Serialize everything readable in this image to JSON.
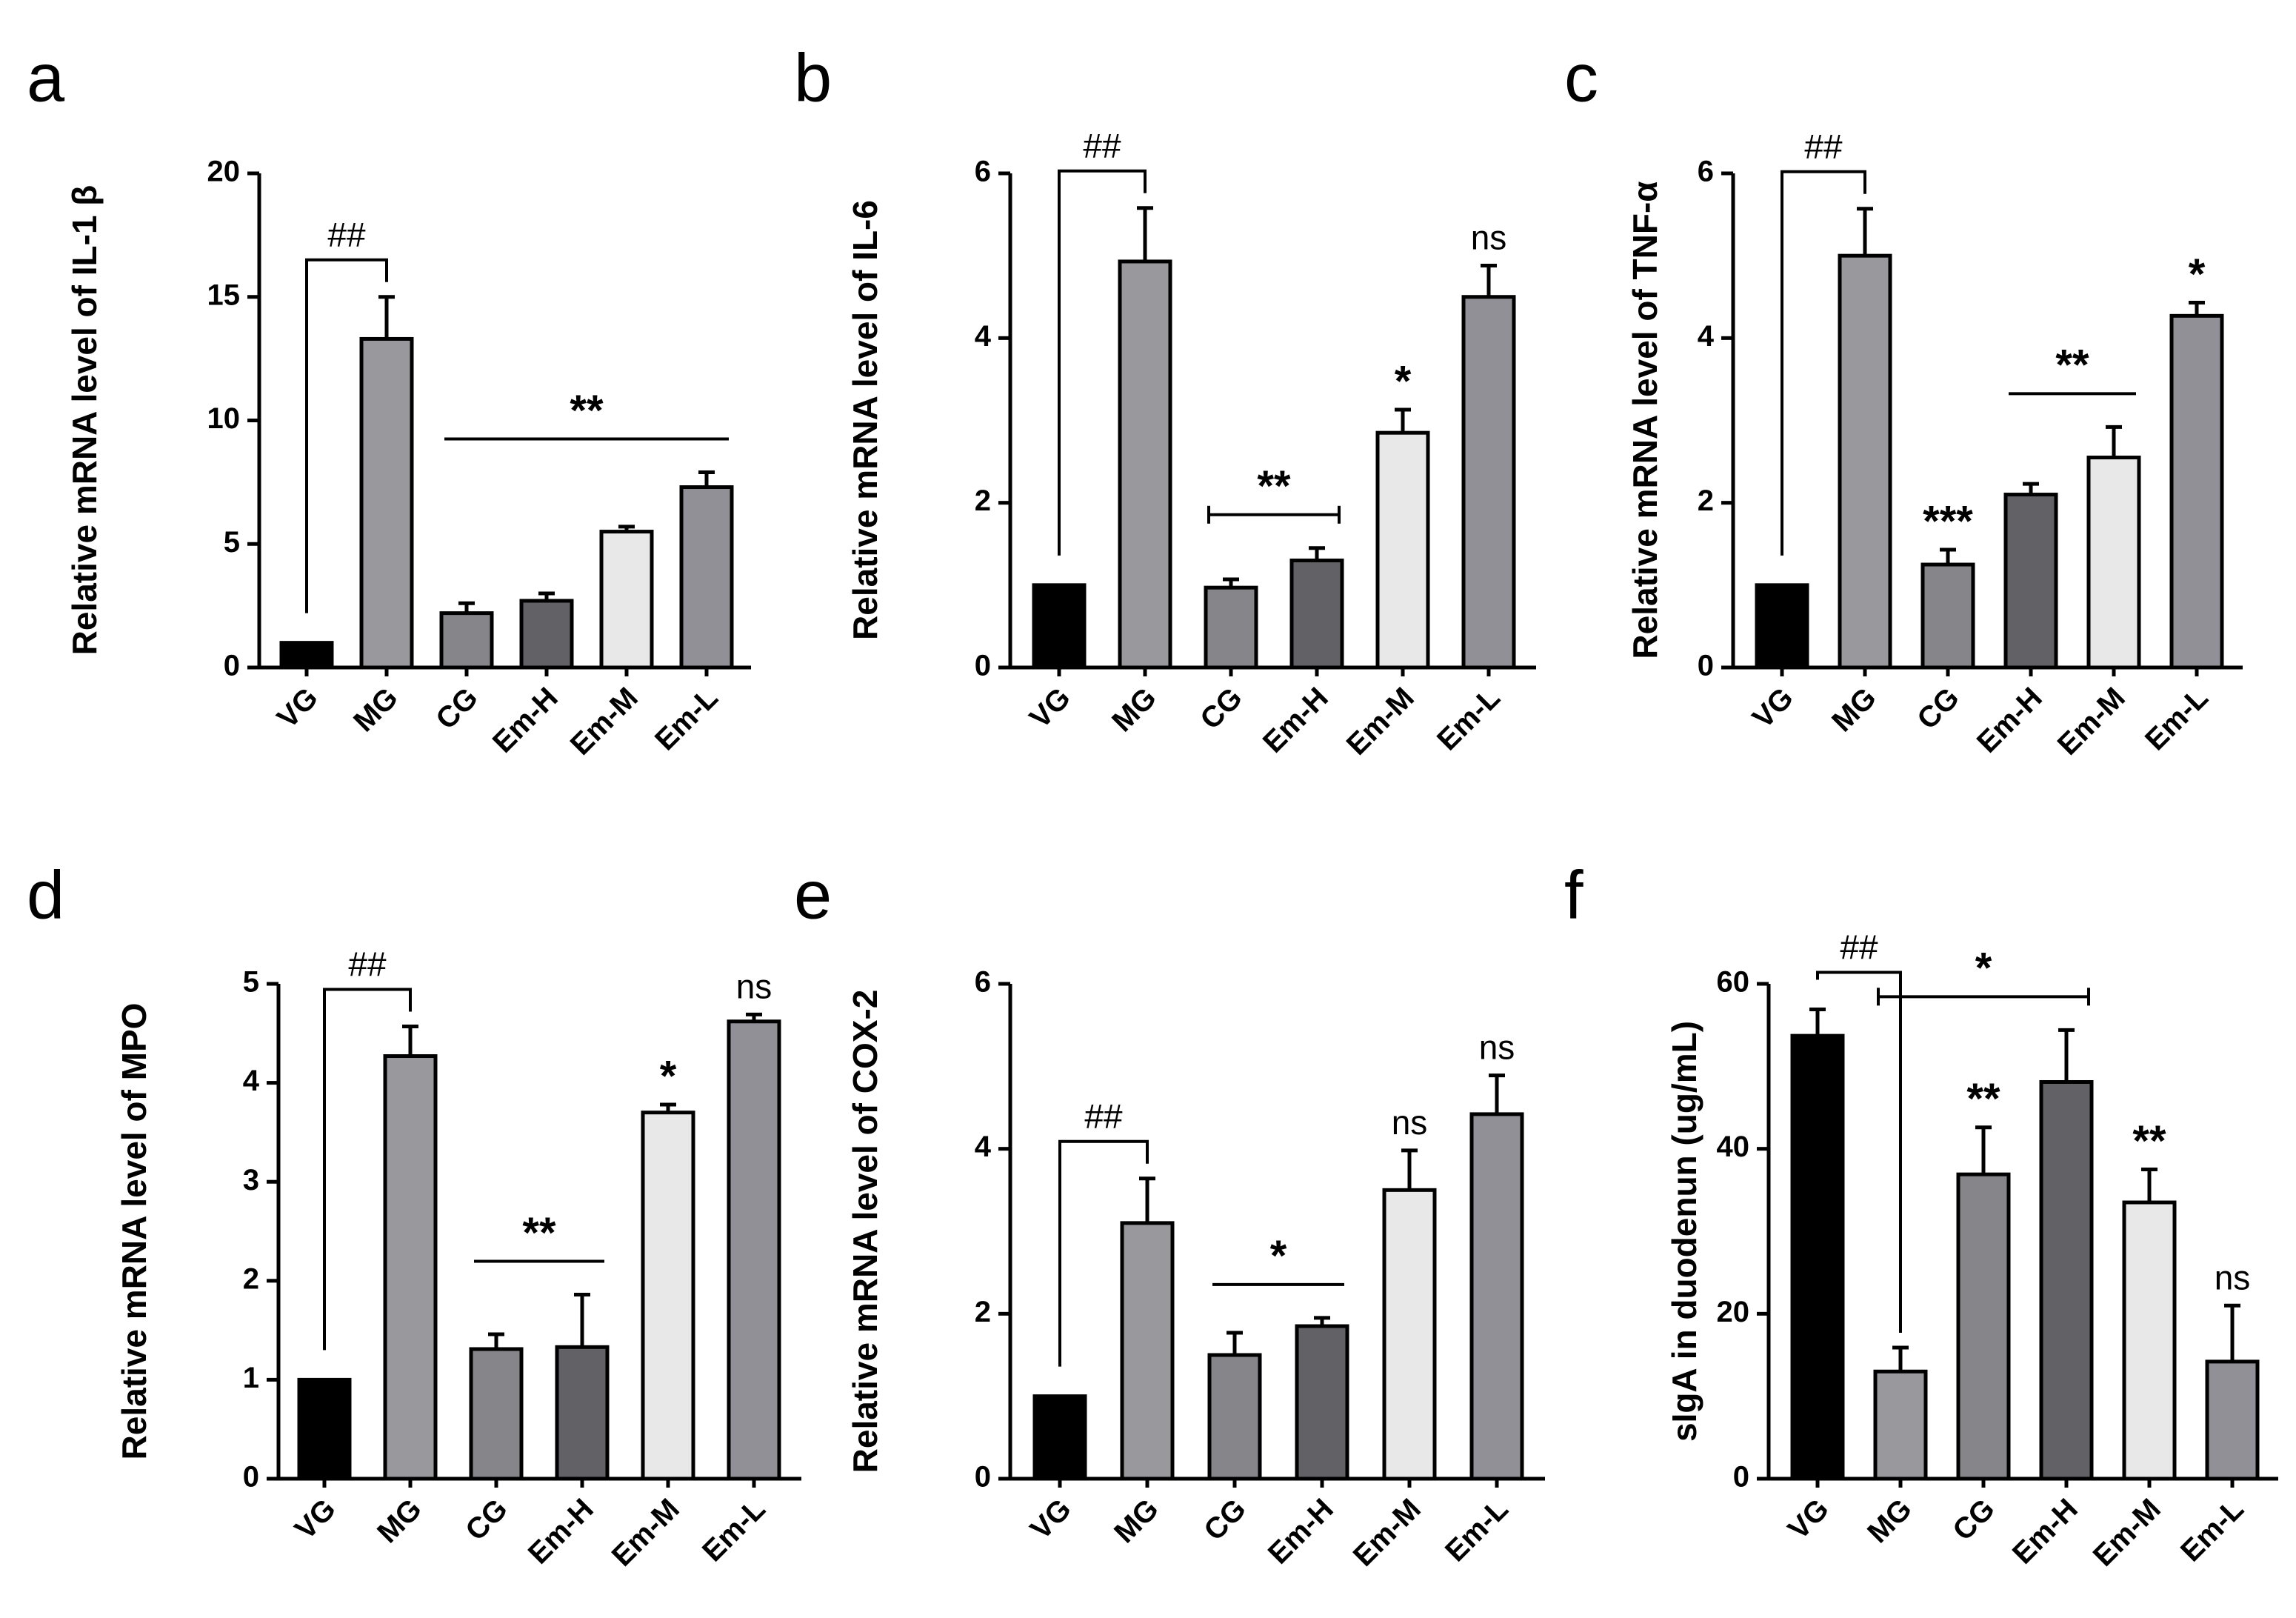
{
  "figure": {
    "colors": {
      "VG": "#000000",
      "MG": "#98989d",
      "CG": "#85858a",
      "Em-H": "#616166",
      "Em-M": "#e8e8e8",
      "Em-L": "#909096"
    }
  },
  "chart_data": [
    {
      "panel": "a",
      "type": "bar",
      "ylabel": "Relative mRNA level of IL-1 β",
      "categories": [
        "VG",
        "MG",
        "CG",
        "Em-H",
        "Em-M",
        "Em-L"
      ],
      "values": [
        1.0,
        13.3,
        2.2,
        2.7,
        5.5,
        7.3
      ],
      "errors": [
        0,
        1.7,
        0.4,
        0.3,
        0.2,
        0.6
      ],
      "ylim": [
        0,
        20
      ],
      "yticks": [
        0,
        5,
        10,
        15,
        20
      ],
      "annotations": [
        {
          "type": "bracket",
          "from": 0,
          "to": 1,
          "text": "##"
        },
        {
          "type": "line",
          "from": 2,
          "to": 5,
          "text": "**"
        }
      ]
    },
    {
      "panel": "b",
      "type": "bar",
      "ylabel": "Relative mRNA level of IL-6",
      "categories": [
        "VG",
        "MG",
        "CG",
        "Em-H",
        "Em-M",
        "Em-L"
      ],
      "values": [
        1.0,
        4.93,
        0.97,
        1.3,
        2.85,
        4.5
      ],
      "errors": [
        0,
        0.65,
        0.1,
        0.15,
        0.28,
        0.38
      ],
      "ylim": [
        0,
        6
      ],
      "yticks": [
        0,
        2,
        4,
        6
      ],
      "annotations": [
        {
          "type": "bracket",
          "from": 0,
          "to": 1,
          "text": "##"
        },
        {
          "type": "capline",
          "from": 2,
          "to": 3,
          "text": "**"
        },
        {
          "type": "single",
          "bar": 4,
          "text": "*"
        },
        {
          "type": "single",
          "bar": 5,
          "text": "ns"
        }
      ]
    },
    {
      "panel": "c",
      "type": "bar",
      "ylabel": "Relative mRNA level of TNF-α",
      "categories": [
        "VG",
        "MG",
        "CG",
        "Em-H",
        "Em-M",
        "Em-L"
      ],
      "values": [
        1.0,
        5.0,
        1.25,
        2.1,
        2.55,
        4.27
      ],
      "errors": [
        0,
        0.57,
        0.18,
        0.13,
        0.37,
        0.16
      ],
      "ylim": [
        0,
        6
      ],
      "yticks": [
        0,
        2,
        4,
        6
      ],
      "annotations": [
        {
          "type": "bracket",
          "from": 0,
          "to": 1,
          "text": "##"
        },
        {
          "type": "single",
          "bar": 2,
          "text": "***"
        },
        {
          "type": "line",
          "from": 3,
          "to": 4,
          "text": "**"
        },
        {
          "type": "single",
          "bar": 5,
          "text": "*"
        }
      ]
    },
    {
      "panel": "d",
      "type": "bar",
      "ylabel": "Relative mRNA level of MPO",
      "categories": [
        "VG",
        "MG",
        "CG",
        "Em-H",
        "Em-M",
        "Em-L"
      ],
      "values": [
        1.0,
        4.27,
        1.31,
        1.33,
        3.7,
        4.62
      ],
      "errors": [
        0,
        0.3,
        0.15,
        0.53,
        0.08,
        0.07
      ],
      "ylim": [
        0,
        5
      ],
      "yticks": [
        0,
        1,
        2,
        3,
        4,
        5
      ],
      "annotations": [
        {
          "type": "bracket",
          "from": 0,
          "to": 1,
          "text": "##"
        },
        {
          "type": "line",
          "from": 2,
          "to": 3,
          "text": "**"
        },
        {
          "type": "single",
          "bar": 4,
          "text": "*"
        },
        {
          "type": "single",
          "bar": 5,
          "text": "ns"
        }
      ]
    },
    {
      "panel": "e",
      "type": "bar",
      "ylabel": "Relative mRNA level of COX-2",
      "categories": [
        "VG",
        "MG",
        "CG",
        "Em-H",
        "Em-M",
        "Em-L"
      ],
      "values": [
        1.0,
        3.1,
        1.5,
        1.85,
        3.5,
        4.42
      ],
      "errors": [
        0,
        0.54,
        0.27,
        0.1,
        0.48,
        0.47
      ],
      "ylim": [
        0,
        6
      ],
      "yticks": [
        0,
        2,
        4,
        6
      ],
      "annotations": [
        {
          "type": "bracket",
          "from": 0,
          "to": 1,
          "text": "##"
        },
        {
          "type": "line",
          "from": 2,
          "to": 3,
          "text": "*"
        },
        {
          "type": "single",
          "bar": 4,
          "text": "ns"
        },
        {
          "type": "single",
          "bar": 5,
          "text": "ns"
        }
      ]
    },
    {
      "panel": "f",
      "type": "bar",
      "ylabel": "sIgA in duodenun (ug/mL)",
      "categories": [
        "VG",
        "MG",
        "CG",
        "Em-H",
        "Em-M",
        "Em-L"
      ],
      "values": [
        53.7,
        13.0,
        36.9,
        48.1,
        33.5,
        14.2
      ],
      "errors": [
        3.2,
        2.9,
        5.7,
        6.3,
        4.0,
        6.8
      ],
      "ylim": [
        0,
        60
      ],
      "yticks": [
        0,
        20,
        40,
        60
      ],
      "annotations": [
        {
          "type": "bracket",
          "from": 0,
          "to": 1,
          "text": "##"
        },
        {
          "type": "capline",
          "from": 1,
          "to": 3,
          "text": "*"
        },
        {
          "type": "single",
          "bar": 2,
          "text": "**"
        },
        {
          "type": "single",
          "bar": 4,
          "text": "**"
        },
        {
          "type": "single",
          "bar": 5,
          "text": "ns"
        }
      ]
    }
  ]
}
